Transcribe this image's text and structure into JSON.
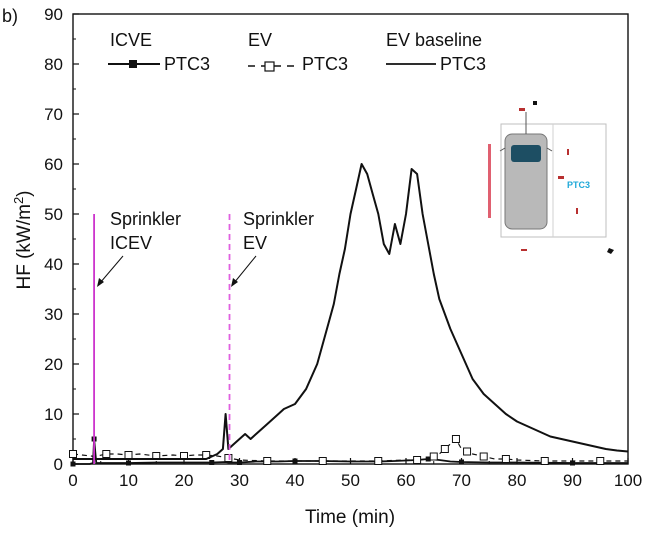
{
  "panel_label": "b)",
  "chart_data": {
    "type": "line",
    "xlabel": "Time (min)",
    "ylabel": "HF (kW/m²)",
    "ylabel_main": "HF (kW/m",
    "ylabel_sup": "2",
    "ylabel_end": ")",
    "xlim": [
      0,
      100
    ],
    "ylim": [
      0,
      90
    ],
    "xticks": [
      0,
      10,
      20,
      30,
      40,
      50,
      60,
      70,
      80,
      90,
      100
    ],
    "yticks": [
      0,
      10,
      20,
      30,
      40,
      50,
      60,
      70,
      80,
      90
    ],
    "legend": [
      {
        "group": "ICVE",
        "label": "PTC3",
        "style": "solid-filled-square"
      },
      {
        "group": "EV",
        "label": "PTC3",
        "style": "dashed-open-square"
      },
      {
        "group": "EV baseline",
        "label": "PTC3",
        "style": "solid"
      }
    ],
    "series": [
      {
        "name": "ICVE PTC3",
        "style": "solid-filled-square",
        "x": [
          0,
          3,
          3.6,
          3.8,
          4.2,
          6,
          10,
          15,
          20,
          25,
          27.5,
          28,
          30,
          33,
          37,
          40,
          45,
          50,
          55,
          58,
          62,
          64,
          66,
          68,
          70,
          75,
          80,
          90,
          100
        ],
        "y": [
          0,
          0,
          0.2,
          5,
          0.2,
          0.2,
          0.2,
          0.3,
          0.3,
          0.3,
          0.4,
          0.3,
          0.3,
          0.5,
          0.5,
          0.6,
          0.6,
          0.5,
          0.5,
          0.6,
          0.8,
          1,
          0.8,
          0.5,
          0.4,
          0.3,
          0.3,
          0.2,
          0.2
        ]
      },
      {
        "name": "EV PTC3",
        "style": "dashed-open-square",
        "x": [
          0,
          4,
          6,
          8,
          10,
          12,
          15,
          18,
          20,
          22,
          24,
          26,
          28,
          30,
          35,
          40,
          45,
          50,
          55,
          60,
          62,
          64,
          65,
          66,
          67,
          68,
          69,
          70,
          71,
          72,
          74,
          76,
          78,
          80,
          85,
          90,
          95,
          100
        ],
        "y": [
          2,
          1.5,
          2,
          2,
          1.8,
          2,
          1.6,
          1.8,
          1.6,
          1.8,
          1.8,
          1.6,
          1.2,
          0.8,
          0.6,
          0.6,
          0.6,
          0.6,
          0.6,
          0.8,
          0.8,
          1,
          1.5,
          2,
          3,
          4,
          5,
          3,
          2.5,
          2,
          1.5,
          1,
          1,
          0.8,
          0.6,
          0.6,
          0.6,
          0.6
        ]
      },
      {
        "name": "EV baseline PTC3",
        "style": "solid",
        "x": [
          0,
          5,
          10,
          15,
          20,
          24,
          26,
          27,
          27.5,
          28,
          29,
          30,
          31,
          32,
          33,
          34,
          35,
          37,
          38,
          40,
          42,
          44,
          46,
          47,
          48,
          49,
          50,
          51,
          52,
          53,
          54,
          55,
          56,
          57,
          58,
          59,
          60,
          61,
          62,
          63,
          64,
          65,
          66,
          68,
          70,
          72,
          74,
          76,
          78,
          80,
          82,
          84,
          86,
          88,
          90,
          92,
          94,
          96,
          98,
          100
        ],
        "y": [
          1,
          1,
          1,
          1,
          1,
          1,
          2,
          3,
          10,
          3,
          4,
          5,
          6,
          5,
          6,
          7,
          8,
          10,
          11,
          12,
          15,
          20,
          28,
          32,
          38,
          43,
          50,
          55,
          60,
          58,
          54,
          50,
          44,
          42,
          48,
          44,
          50,
          59,
          58,
          50,
          44,
          38,
          33,
          27,
          22,
          17,
          14,
          12,
          10,
          8.5,
          7.5,
          6.5,
          5.5,
          5,
          4.5,
          4,
          3.5,
          3,
          2.7,
          2.5
        ]
      }
    ],
    "annotations": [
      {
        "text_line1": "Sprinkler",
        "text_line2": "ICEV",
        "x_line": 3.8,
        "line_top": 50,
        "line_style": "solid",
        "color": "#cc33cc"
      },
      {
        "text_line1": "Sprinkler",
        "text_line2": "EV",
        "x_line": 28.2,
        "line_top": 50,
        "line_style": "dashed",
        "color": "#e060e0"
      }
    ],
    "inset": {
      "label": "PTC3",
      "label_color": "#1fa8d8",
      "car_color": "#b9b9b9",
      "window_color": "#1d4e63",
      "marker_color": "#b83030"
    }
  }
}
